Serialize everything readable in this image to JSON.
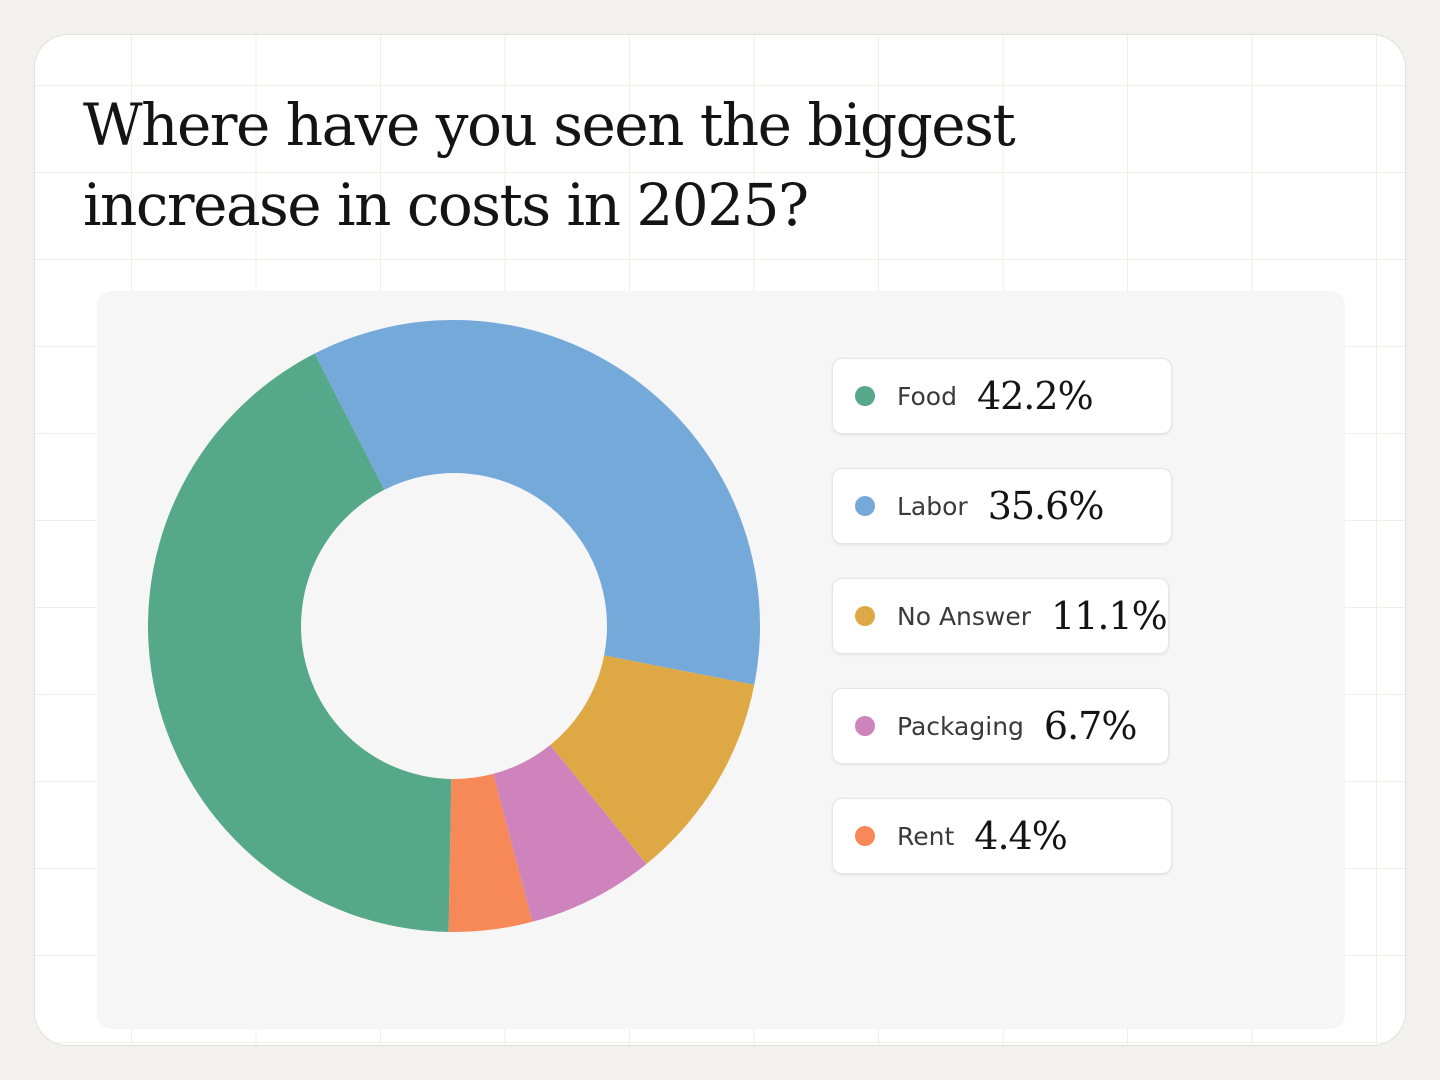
{
  "title": "Where have you seen the biggest increase in costs in 2025?",
  "chart_data": {
    "type": "pie",
    "title": "Where have you seen the biggest increase in costs in 2025?",
    "donut": true,
    "start_angle_deg": 269,
    "direction": "counterclockwise",
    "legend_placement": "right",
    "slices": [
      {
        "label": "Food",
        "value_label": "42.2%",
        "value": 42.2,
        "color": "#55a889"
      },
      {
        "label": "Labor",
        "value_label": "35.6%",
        "value": 35.6,
        "color": "#74a9da"
      },
      {
        "label": "No Answer",
        "value_label": "11.1%",
        "value": 11.1,
        "color": "#dea944"
      },
      {
        "label": "Packaging",
        "value_label": "6.7%",
        "value": 6.7,
        "color": "#cf83bc"
      },
      {
        "label": "Rent",
        "value_label": "4.4%",
        "value": 4.4,
        "color": "#f68957"
      }
    ]
  }
}
